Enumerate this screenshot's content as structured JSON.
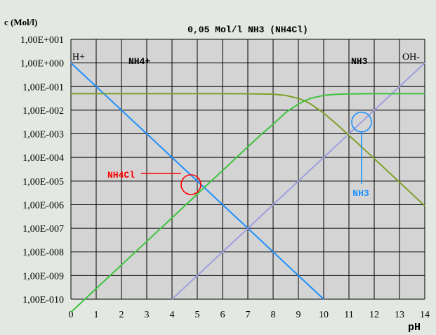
{
  "chart_data": {
    "type": "line",
    "title": "0,05 Mol/l NH3 (NH4Cl)",
    "ylabel": "c (Mol/l)",
    "xlabel": "pH",
    "log_y": true,
    "grid": true,
    "xlim": [
      0,
      14
    ],
    "ylim": [
      1e-10,
      10
    ],
    "x_ticks": [
      "0",
      "1",
      "2",
      "3",
      "4",
      "5",
      "6",
      "7",
      "8",
      "9",
      "10",
      "11",
      "12",
      "13",
      "14"
    ],
    "y_ticks": [
      "1,00E+001",
      "1,00E+000",
      "1,00E-001",
      "1,00E-002",
      "1,00E-003",
      "1,00E-004",
      "1,00E-005",
      "1,00E-006",
      "1,00E-007",
      "1,00E-008",
      "1,00E-009",
      "1,00E-010"
    ],
    "series": [
      {
        "name": "H+",
        "color": "#1e90ff",
        "points": [
          [
            0,
            1
          ],
          [
            10,
            1e-10
          ]
        ]
      },
      {
        "name": "OH-",
        "color": "#9f9fe0",
        "points": [
          [
            4,
            1e-10
          ],
          [
            14,
            1
          ]
        ]
      },
      {
        "name": "NH4+",
        "color": "#7fa02a",
        "points": [
          [
            0,
            0.05
          ],
          [
            4,
            0.05
          ],
          [
            6,
            0.0499
          ],
          [
            7,
            0.0497
          ],
          [
            8,
            0.0475
          ],
          [
            8.5,
            0.042
          ],
          [
            9,
            0.0317
          ],
          [
            9.25,
            0.025
          ],
          [
            9.5,
            0.0179
          ],
          [
            10,
            0.00756
          ],
          [
            10.5,
            0.00263
          ],
          [
            11,
            0.000865
          ],
          [
            11.5,
            0.000279
          ],
          [
            12,
            8.9e-05
          ],
          [
            12.5,
            2.82e-05
          ],
          [
            13,
            8.91e-06
          ],
          [
            14,
            8.9e-07
          ]
        ]
      },
      {
        "name": "NH3",
        "color": "#3ec43e",
        "points": [
          [
            0,
            2.8e-11
          ],
          [
            2,
            2.8e-09
          ],
          [
            4,
            2.8e-07
          ],
          [
            5,
            2.8e-06
          ],
          [
            6,
            2.8e-05
          ],
          [
            7,
            0.000281
          ],
          [
            7.5,
            0.000878
          ],
          [
            8,
            0.00253
          ],
          [
            8.5,
            0.00801
          ],
          [
            9,
            0.0183
          ],
          [
            9.25,
            0.025
          ],
          [
            9.5,
            0.0321
          ],
          [
            10,
            0.0424
          ],
          [
            10.5,
            0.0474
          ],
          [
            11,
            0.0491
          ],
          [
            12,
            0.0499
          ],
          [
            14,
            0.05
          ]
        ]
      }
    ],
    "annotations": [
      {
        "text": "NH4Cl",
        "color": "#ff0000",
        "x": 4.75,
        "y": 7.07e-06
      },
      {
        "text": "NH3",
        "color": "#1e90ff",
        "x": 11.5,
        "y": 0.00316
      }
    ]
  }
}
